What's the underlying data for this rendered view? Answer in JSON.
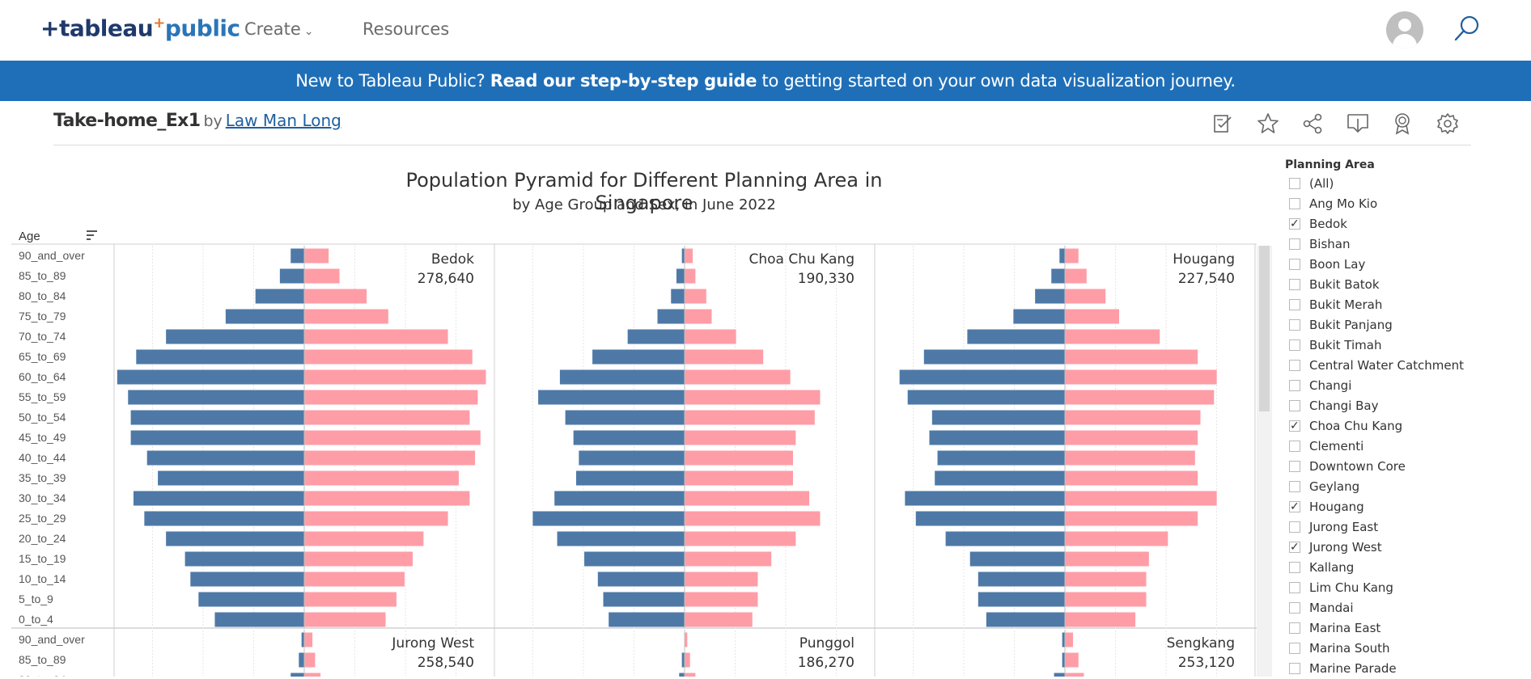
{
  "nav": {
    "logo_prefix": "+",
    "logo_a": "tableau",
    "logo_plus": "+",
    "logo_b": "public",
    "create": "Create",
    "resources": "Resources"
  },
  "banner": {
    "pre": "New to Tableau Public? ",
    "bold": "Read our step-by-step guide",
    "post": " to getting started on your own data visualization journey."
  },
  "workbook": {
    "title": "Take-home_Ex1",
    "by": "by",
    "author": "Law Man Long"
  },
  "toolbar": [
    "edit-icon",
    "star-icon",
    "share-icon",
    "download-icon",
    "badge-icon",
    "settings-icon"
  ],
  "viz": {
    "title": "Population Pyramid for Different Planning Area in Singapore",
    "subtitle": "by Age Group and Sex, in June 2022",
    "age_header": "Age"
  },
  "colors": {
    "male": "#4e79a7",
    "female": "#ff9da7",
    "banner": "#1f6fb8"
  },
  "chart_data": {
    "type": "bar",
    "categories": [
      "90_and_over",
      "85_to_89",
      "80_to_84",
      "75_to_79",
      "70_to_74",
      "65_to_69",
      "60_to_64",
      "55_to_59",
      "50_to_54",
      "45_to_49",
      "40_to_44",
      "35_to_39",
      "30_to_34",
      "25_to_29",
      "20_to_24",
      "15_to_19",
      "10_to_14",
      "5_to_9",
      "0_to_4"
    ],
    "panels": [
      {
        "area": "Bedok",
        "total": "278,640",
        "male": [
          0.05,
          0.09,
          0.18,
          0.29,
          0.51,
          0.62,
          0.69,
          0.65,
          0.64,
          0.64,
          0.58,
          0.54,
          0.63,
          0.59,
          0.51,
          0.44,
          0.42,
          0.39,
          0.33
        ],
        "female": [
          0.09,
          0.13,
          0.23,
          0.31,
          0.53,
          0.62,
          0.67,
          0.64,
          0.61,
          0.65,
          0.63,
          0.57,
          0.61,
          0.53,
          0.44,
          0.4,
          0.37,
          0.34,
          0.3
        ]
      },
      {
        "area": "Choa Chu Kang",
        "total": "190,330",
        "male": [
          0.01,
          0.03,
          0.05,
          0.1,
          0.21,
          0.34,
          0.46,
          0.54,
          0.44,
          0.41,
          0.39,
          0.4,
          0.48,
          0.56,
          0.47,
          0.37,
          0.32,
          0.3,
          0.28
        ],
        "female": [
          0.03,
          0.04,
          0.08,
          0.1,
          0.19,
          0.29,
          0.39,
          0.5,
          0.48,
          0.41,
          0.4,
          0.4,
          0.46,
          0.5,
          0.41,
          0.32,
          0.27,
          0.27,
          0.25
        ]
      },
      {
        "area": "Hougang",
        "total": "227,540",
        "male": [
          0.02,
          0.05,
          0.11,
          0.19,
          0.36,
          0.52,
          0.61,
          0.58,
          0.49,
          0.5,
          0.47,
          0.48,
          0.59,
          0.55,
          0.44,
          0.35,
          0.32,
          0.32,
          0.29
        ],
        "female": [
          0.05,
          0.08,
          0.15,
          0.2,
          0.35,
          0.49,
          0.56,
          0.55,
          0.5,
          0.49,
          0.48,
          0.49,
          0.56,
          0.49,
          0.38,
          0.31,
          0.3,
          0.3,
          0.26
        ]
      },
      {
        "area": "Jurong West",
        "total": "258,540",
        "male": [
          0.01,
          0.02,
          0.05
        ],
        "female": [
          0.03,
          0.04,
          0.06
        ]
      },
      {
        "area": "Punggol",
        "total": "186,270",
        "male": [
          0.0,
          0.01,
          0.02
        ],
        "female": [
          0.01,
          0.02,
          0.04
        ]
      },
      {
        "area": "Sengkang",
        "total": "253,120",
        "male": [
          0.01,
          0.01,
          0.04
        ],
        "female": [
          0.03,
          0.05,
          0.07
        ]
      }
    ],
    "xlabel": "",
    "ylabel": "Age"
  },
  "filter": {
    "title": "Planning Area",
    "items": [
      {
        "label": "(All)",
        "checked": false
      },
      {
        "label": "Ang Mo Kio",
        "checked": false
      },
      {
        "label": "Bedok",
        "checked": true
      },
      {
        "label": "Bishan",
        "checked": false
      },
      {
        "label": "Boon Lay",
        "checked": false
      },
      {
        "label": "Bukit Batok",
        "checked": false
      },
      {
        "label": "Bukit Merah",
        "checked": false
      },
      {
        "label": "Bukit Panjang",
        "checked": false
      },
      {
        "label": "Bukit Timah",
        "checked": false
      },
      {
        "label": "Central Water Catchment",
        "checked": false
      },
      {
        "label": "Changi",
        "checked": false
      },
      {
        "label": "Changi Bay",
        "checked": false
      },
      {
        "label": "Choa Chu Kang",
        "checked": true
      },
      {
        "label": "Clementi",
        "checked": false
      },
      {
        "label": "Downtown Core",
        "checked": false
      },
      {
        "label": "Geylang",
        "checked": false
      },
      {
        "label": "Hougang",
        "checked": true
      },
      {
        "label": "Jurong East",
        "checked": false
      },
      {
        "label": "Jurong West",
        "checked": true
      },
      {
        "label": "Kallang",
        "checked": false
      },
      {
        "label": "Lim Chu Kang",
        "checked": false
      },
      {
        "label": "Mandai",
        "checked": false
      },
      {
        "label": "Marina East",
        "checked": false
      },
      {
        "label": "Marina South",
        "checked": false
      },
      {
        "label": "Marine Parade",
        "checked": false
      }
    ]
  }
}
